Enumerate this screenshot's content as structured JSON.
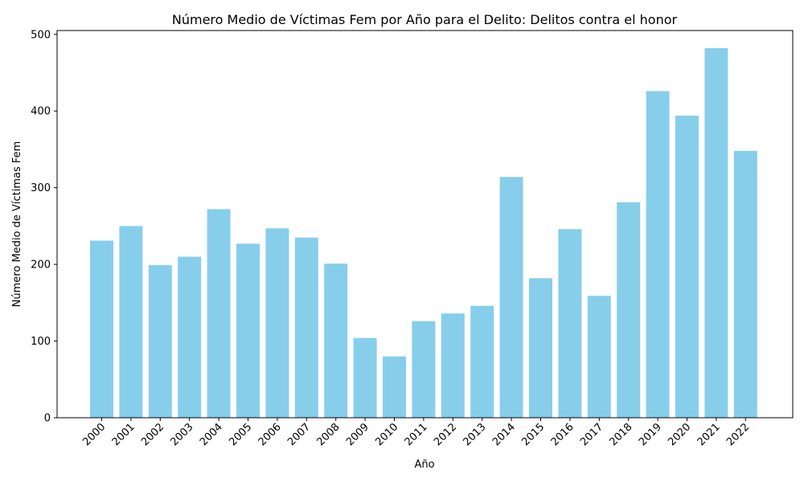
{
  "chart_data": {
    "type": "bar",
    "title": "Número Medio de Víctimas Fem por Año para el Delito: Delitos contra el honor",
    "xlabel": "Año",
    "ylabel": "Número Medio de Víctimas Fem",
    "categories": [
      "2000",
      "2001",
      "2002",
      "2003",
      "2004",
      "2005",
      "2006",
      "2007",
      "2008",
      "2009",
      "2010",
      "2011",
      "2012",
      "2013",
      "2014",
      "2015",
      "2016",
      "2017",
      "2018",
      "2019",
      "2020",
      "2021",
      "2022"
    ],
    "values": [
      231,
      250,
      199,
      210,
      272,
      227,
      247,
      235,
      201,
      104,
      80,
      126,
      136,
      146,
      314,
      182,
      246,
      159,
      281,
      426,
      394,
      482,
      348
    ],
    "ylim": [
      0,
      505
    ],
    "yticks": [
      0,
      100,
      200,
      300,
      400,
      500
    ],
    "bar_color": "#87ceeb",
    "grid": false,
    "legend": "none"
  }
}
